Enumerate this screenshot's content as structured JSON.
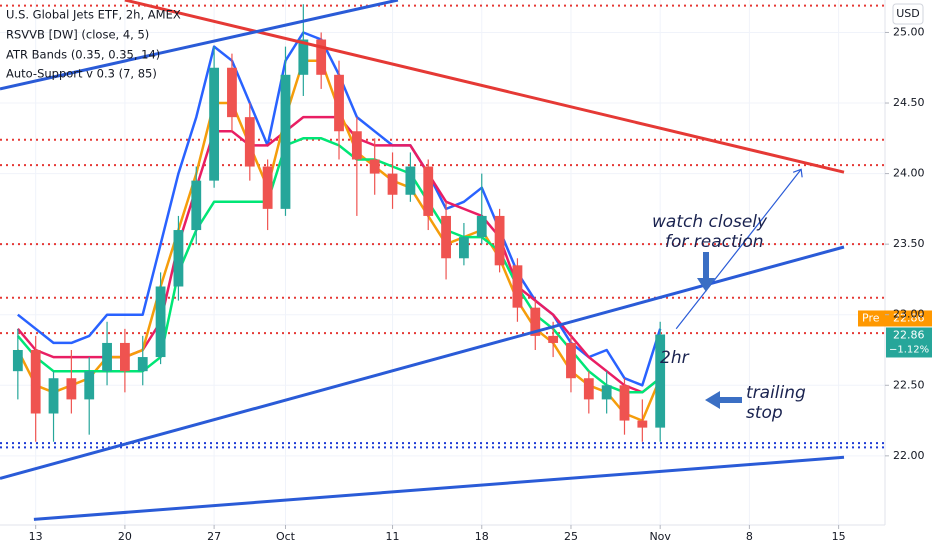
{
  "chart_data": {
    "type": "candlestick",
    "legend_lines": [
      "U.S. Global Jets ETF, 2h, AMEX",
      "RSVVB [DW] (close, 4, 5)",
      "ATR Bands (0.35, 0.35, 14)",
      "Auto-Support v 0.3 (7, 85)"
    ],
    "currency": "USD",
    "x": [
      -1,
      0,
      1,
      2,
      3,
      4,
      5,
      6,
      7,
      8,
      9,
      10,
      11,
      12,
      13,
      14,
      15,
      16,
      17,
      18,
      19,
      20,
      21,
      22,
      23,
      24,
      25,
      26,
      27,
      28,
      29,
      30,
      31,
      32,
      33,
      34,
      35
    ],
    "open": [
      22.6,
      22.75,
      22.3,
      22.55,
      22.4,
      22.6,
      22.8,
      22.6,
      22.7,
      23.2,
      23.6,
      23.95,
      24.75,
      24.4,
      24.05,
      23.75,
      24.7,
      24.95,
      24.7,
      24.3,
      24.1,
      24.0,
      23.85,
      24.05,
      23.7,
      23.4,
      23.55,
      23.7,
      23.35,
      23.05,
      22.85,
      22.8,
      22.55,
      22.4,
      22.5,
      22.25,
      22.2
    ],
    "high": [
      22.9,
      22.85,
      22.6,
      22.75,
      22.7,
      22.95,
      22.9,
      22.85,
      23.3,
      23.7,
      24.05,
      24.9,
      24.85,
      24.5,
      24.1,
      24.9,
      25.2,
      25.0,
      24.8,
      24.4,
      24.25,
      24.15,
      24.15,
      24.1,
      23.8,
      23.65,
      24.0,
      23.75,
      23.4,
      23.1,
      22.95,
      22.85,
      22.6,
      22.6,
      22.55,
      22.4,
      22.95
    ],
    "low": [
      22.4,
      22.1,
      22.1,
      22.3,
      22.15,
      22.5,
      22.45,
      22.5,
      22.65,
      23.1,
      23.5,
      23.9,
      24.3,
      23.95,
      23.6,
      23.7,
      24.55,
      24.6,
      24.1,
      23.7,
      23.85,
      23.75,
      23.8,
      23.6,
      23.25,
      23.35,
      23.5,
      23.3,
      22.95,
      22.75,
      22.7,
      22.45,
      22.3,
      22.3,
      22.15,
      22.1,
      22.1
    ],
    "close": [
      22.75,
      22.3,
      22.55,
      22.4,
      22.6,
      22.8,
      22.6,
      22.7,
      23.2,
      23.6,
      23.95,
      24.75,
      24.4,
      24.05,
      23.75,
      24.7,
      24.95,
      24.7,
      24.3,
      24.1,
      24.0,
      23.85,
      24.05,
      23.7,
      23.4,
      23.55,
      23.7,
      23.35,
      23.05,
      22.85,
      22.8,
      22.55,
      22.4,
      22.5,
      22.25,
      22.2,
      22.86
    ],
    "up_color": "#26a69a",
    "down_color": "#ef5350",
    "lines": [
      {
        "color": "#2962ff",
        "values": [
          23.0,
          22.9,
          22.8,
          22.8,
          22.85,
          23.0,
          23.0,
          23.0,
          23.5,
          24.0,
          24.4,
          24.9,
          24.8,
          24.5,
          24.2,
          24.8,
          25.0,
          24.95,
          24.7,
          24.4,
          24.3,
          24.2,
          24.2,
          24.0,
          23.75,
          23.8,
          23.9,
          23.6,
          23.3,
          23.1,
          23.0,
          22.8,
          22.7,
          22.75,
          22.55,
          22.5,
          22.9
        ]
      },
      {
        "color": "#e91e63",
        "values": [
          22.9,
          22.75,
          22.7,
          22.7,
          22.7,
          22.7,
          22.7,
          22.75,
          22.95,
          23.5,
          23.9,
          24.3,
          24.3,
          24.2,
          24.2,
          24.3,
          24.4,
          24.4,
          24.4,
          24.25,
          24.2,
          24.2,
          24.2,
          24.0,
          23.8,
          23.75,
          23.7,
          23.55,
          23.2,
          23.1,
          23.0,
          22.85,
          22.7,
          22.6,
          22.5,
          22.45,
          22.55
        ]
      },
      {
        "color": "#f59d0b",
        "values": [
          22.75,
          22.5,
          22.45,
          22.5,
          22.55,
          22.7,
          22.7,
          22.75,
          23.2,
          23.6,
          24.0,
          24.5,
          24.5,
          24.2,
          23.9,
          24.4,
          24.8,
          24.8,
          24.45,
          24.15,
          24.05,
          23.95,
          23.9,
          23.7,
          23.5,
          23.55,
          23.6,
          23.4,
          23.1,
          22.9,
          22.8,
          22.6,
          22.5,
          22.45,
          22.3,
          22.25,
          22.55
        ]
      },
      {
        "color": "#00e676",
        "values": [
          22.85,
          22.7,
          22.6,
          22.6,
          22.6,
          22.6,
          22.6,
          22.6,
          22.7,
          23.3,
          23.6,
          23.8,
          23.8,
          23.8,
          23.8,
          24.2,
          24.25,
          24.25,
          24.2,
          24.1,
          24.1,
          24.05,
          24.0,
          23.8,
          23.6,
          23.55,
          23.55,
          23.45,
          23.2,
          23.0,
          22.9,
          22.75,
          22.6,
          22.5,
          22.45,
          22.45,
          22.55
        ]
      }
    ],
    "trendlines": [
      {
        "color": "#e53935",
        "x": [
          5,
          45.3
        ],
        "values": [
          25.23,
          24.01
        ]
      },
      {
        "color": "#2a5bd7",
        "x": [
          -2,
          20.3
        ],
        "values": [
          24.6,
          25.23
        ]
      },
      {
        "color": "#2a5bd7",
        "x": [
          -2,
          45.3
        ],
        "values": [
          21.84,
          23.48
        ]
      },
      {
        "color": "#2a5bd7",
        "x": [
          -0.1,
          45.3
        ],
        "values": [
          21.55,
          21.99
        ]
      }
    ],
    "levels": [
      {
        "color": "#e53935",
        "value": 25.19
      },
      {
        "color": "#e53935",
        "value": 24.24
      },
      {
        "color": "#e53935",
        "value": 24.06
      },
      {
        "color": "#e53935",
        "value": 23.5
      },
      {
        "color": "#e53935",
        "value": 23.12
      },
      {
        "color": "#e53935",
        "value": 22.87
      },
      {
        "color": "#1e3bd6",
        "value": 22.09
      },
      {
        "color": "#1e3bd6",
        "value": 22.06
      }
    ],
    "arrow": {
      "x": [
        35.9,
        42.9
      ],
      "values": [
        22.9,
        24.03
      ]
    },
    "xlim": [
      -2,
      47.6
    ],
    "ylim": [
      21.51,
      25.23
    ],
    "xticks": [
      {
        "value": 0,
        "label": "13"
      },
      {
        "value": 5,
        "label": "20"
      },
      {
        "value": 10,
        "label": "27"
      },
      {
        "value": 14,
        "label": "Oct"
      },
      {
        "value": 20,
        "label": "11"
      },
      {
        "value": 25,
        "label": "18"
      },
      {
        "value": 30,
        "label": "25"
      },
      {
        "value": 35,
        "label": "Nov"
      },
      {
        "value": 40,
        "label": "8"
      },
      {
        "value": 45,
        "label": "15"
      }
    ],
    "yticks": [
      {
        "value": 25,
        "label": "25.00"
      },
      {
        "value": 24.5,
        "label": "24.50"
      },
      {
        "value": 24,
        "label": "24.00"
      },
      {
        "value": 23.5,
        "label": "23.50"
      },
      {
        "value": 23,
        "label": "23.00"
      },
      {
        "value": 22.5,
        "label": "22.50"
      },
      {
        "value": 22,
        "label": "22.00"
      }
    ],
    "pre_label": "Pre",
    "last_price": 22.86,
    "change_label": "−1.12%",
    "annotations": [
      "watch closely",
      "for reaction",
      "2hr",
      "trailing",
      "stop"
    ]
  }
}
